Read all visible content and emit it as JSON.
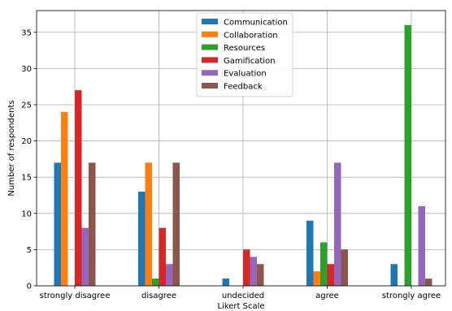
{
  "chart_data": {
    "type": "bar",
    "xlabel": "Likert Scale",
    "ylabel": "Number of respondents",
    "ylim": [
      0,
      38
    ],
    "yticks": [
      0,
      5,
      10,
      15,
      20,
      25,
      30,
      35
    ],
    "grid": true,
    "legend_position": "top-center",
    "categories": [
      "strongly disagree",
      "disagree",
      "undecided",
      "agree",
      "strongly agree"
    ],
    "series": [
      {
        "name": "Communication",
        "color": "#1f77b4",
        "values": [
          17,
          13,
          1,
          9,
          3
        ]
      },
      {
        "name": "Collaboration",
        "color": "#ff7f0e",
        "values": [
          24,
          17,
          0,
          2,
          0
        ]
      },
      {
        "name": "Resources",
        "color": "#2ca02c",
        "values": [
          0,
          1,
          0,
          6,
          36
        ]
      },
      {
        "name": "Gamification",
        "color": "#d62728",
        "values": [
          27,
          8,
          5,
          3,
          0
        ]
      },
      {
        "name": "Evaluation",
        "color": "#9467bd",
        "values": [
          8,
          3,
          4,
          17,
          11
        ]
      },
      {
        "name": "Feedback",
        "color": "#8c564b",
        "values": [
          17,
          17,
          3,
          5,
          1
        ]
      }
    ]
  }
}
